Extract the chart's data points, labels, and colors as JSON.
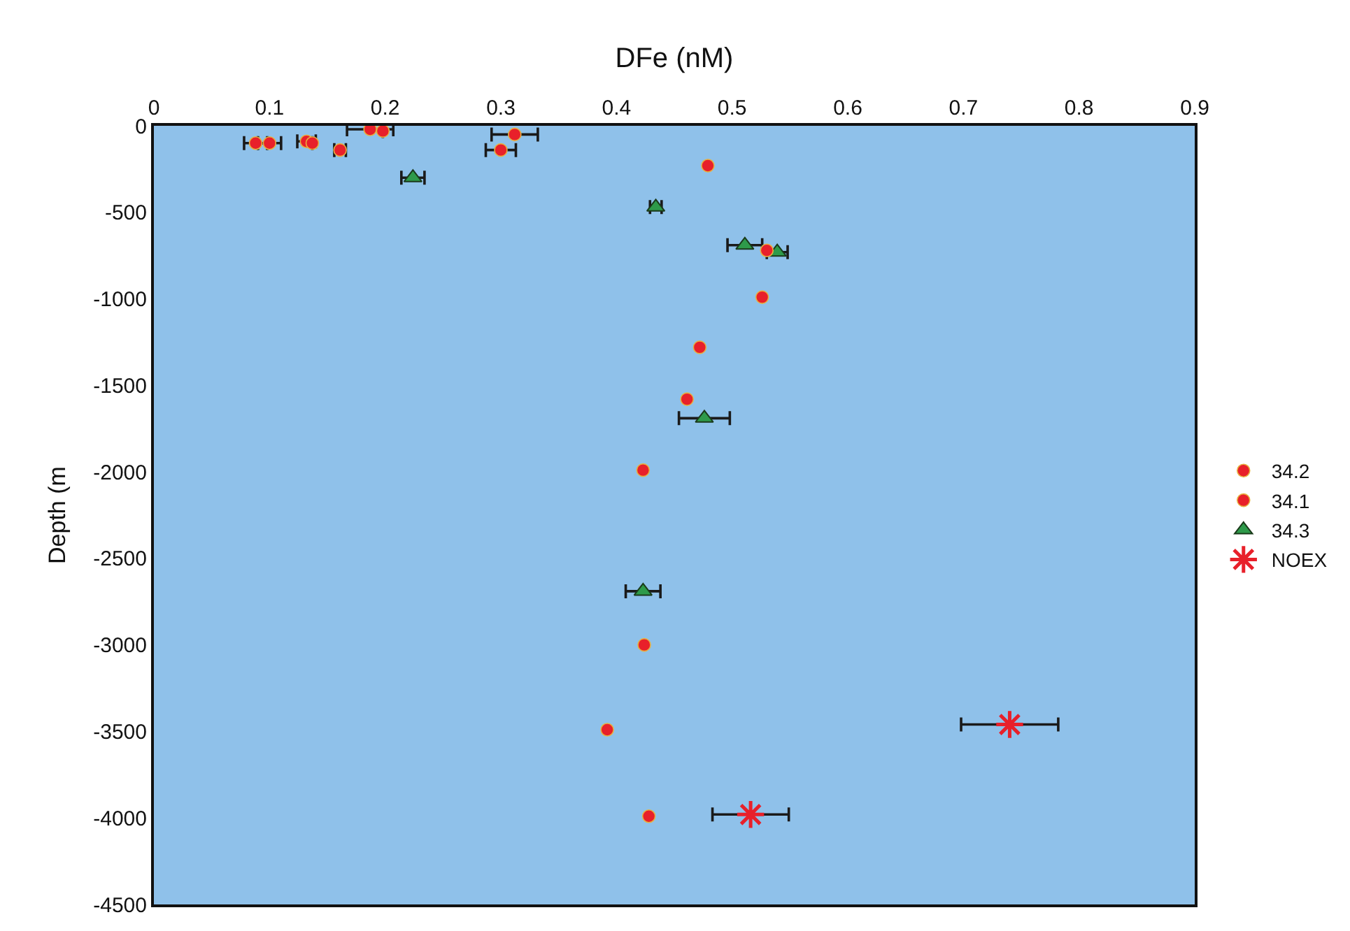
{
  "chart_data": {
    "type": "scatter",
    "xlabel": "DFe (nM)",
    "ylabel": "Depth (m",
    "xlim": [
      0,
      0.9
    ],
    "xticks": [
      0,
      0.1,
      0.2,
      0.3,
      0.4,
      0.5,
      0.6,
      0.7,
      0.8,
      0.9
    ],
    "ylim": [
      -4500,
      0
    ],
    "yticks": [
      0,
      -500,
      -1000,
      -1500,
      -2000,
      -2500,
      -3000,
      -3500,
      -4000,
      -4500
    ],
    "grid": false,
    "legend": "right",
    "series": [
      {
        "name": "34.2",
        "color": "#e8202a",
        "marker": "circle",
        "x": [
          0.479,
          0.53,
          0.526,
          0.472,
          0.461,
          0.423,
          0.424,
          0.392,
          0.428
        ],
        "values": [
          -230,
          -720,
          -990,
          -1280,
          -1580,
          -1990,
          -3000,
          -3490,
          -3990
        ]
      },
      {
        "name": "34.1",
        "color": "#e8202a",
        "marker": "circle",
        "x": [
          0.088,
          0.1,
          0.132,
          0.137,
          0.161,
          0.187,
          0.198,
          0.3,
          0.312
        ],
        "values": [
          -100,
          -100,
          -90,
          -100,
          -140,
          -20,
          -30,
          -140,
          -50
        ],
        "xerrors": [
          0.01,
          0.01,
          0.008,
          null,
          0.005,
          0.02,
          null,
          0.013,
          0.02
        ]
      },
      {
        "name": "34.3",
        "color": "#2e9a4a",
        "marker": "triangle",
        "x": [
          0.224,
          0.434,
          0.511,
          0.539,
          0.476,
          0.423
        ],
        "values": [
          -300,
          -470,
          -690,
          -730,
          -1690,
          -2690
        ],
        "xerrors": [
          0.01,
          0.005,
          0.015,
          0.009,
          0.022,
          0.015
        ]
      },
      {
        "name": "NOEX",
        "color": "#e8202a",
        "marker": "cross",
        "x": [
          0.74,
          0.516
        ],
        "values": [
          -3460,
          -3980
        ],
        "xerrors": [
          0.042,
          0.033
        ]
      }
    ]
  }
}
